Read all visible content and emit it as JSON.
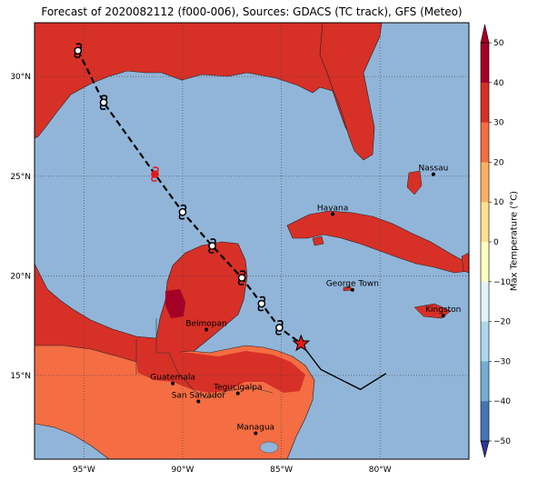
{
  "title": "Forecast of 2020082112 (f000-006), Sources: GDACS (TC track), GFS (Meteo)",
  "map": {
    "lat_ticks": [
      {
        "value": 30,
        "label": "30°N"
      },
      {
        "value": 25,
        "label": "25°N"
      },
      {
        "value": 20,
        "label": "20°N"
      },
      {
        "value": 15,
        "label": "15°N"
      }
    ],
    "lon_ticks": [
      {
        "value": -95,
        "label": "95°W"
      },
      {
        "value": -90,
        "label": "90°W"
      },
      {
        "value": -85,
        "label": "85°W"
      },
      {
        "value": -80,
        "label": "80°W"
      }
    ],
    "cities": [
      {
        "name": "Nassau",
        "lon": -77.3,
        "lat": 25.1
      },
      {
        "name": "Havana",
        "lon": -82.4,
        "lat": 23.1
      },
      {
        "name": "George Town",
        "lon": -81.4,
        "lat": 19.3
      },
      {
        "name": "Kingston",
        "lon": -76.8,
        "lat": 18.0
      },
      {
        "name": "Belmopan",
        "lon": -88.8,
        "lat": 17.3
      },
      {
        "name": "Guatemala",
        "lon": -90.5,
        "lat": 14.6
      },
      {
        "name": "Tegucigalpa",
        "lon": -87.2,
        "lat": 14.1
      },
      {
        "name": "San Salvador",
        "lon": -89.2,
        "lat": 13.7
      },
      {
        "name": "Managua",
        "lon": -86.3,
        "lat": 12.1
      }
    ],
    "track": [
      {
        "lon": -95.3,
        "lat": 31.3
      },
      {
        "lon": -94.0,
        "lat": 28.7
      },
      {
        "lon": -91.4,
        "lat": 25.1
      },
      {
        "lon": -90.0,
        "lat": 23.2
      },
      {
        "lon": -88.5,
        "lat": 21.5
      },
      {
        "lon": -87.0,
        "lat": 19.9
      },
      {
        "lon": -86.0,
        "lat": 18.6
      },
      {
        "lon": -85.1,
        "lat": 17.4
      },
      {
        "lon": -84.0,
        "lat": 16.6
      }
    ],
    "current_position": {
      "lon": -84.0,
      "lat": 16.6
    },
    "past_track": [
      {
        "lon": -84.0,
        "lat": 16.6
      },
      {
        "lon": -83.0,
        "lat": 15.3
      },
      {
        "lon": -81.0,
        "lat": 14.3
      },
      {
        "lon": -79.7,
        "lat": 15.1
      }
    ],
    "colors": {
      "ocean": "#91b5d9",
      "land_hot": "#d73027",
      "land_warm": "#f46d43",
      "land_veryhot": "#a50026",
      "track": "#000000",
      "storm_red": "#e31a1c"
    }
  },
  "colorbar": {
    "title": "Max Temperature (°C)",
    "ticks": [
      "50",
      "40",
      "30",
      "20",
      "10",
      "0",
      "−10",
      "−20",
      "−30",
      "−40",
      "−50"
    ],
    "colors": [
      "#a50026",
      "#d73027",
      "#f46d43",
      "#fdae61",
      "#fee090",
      "#ffffbf",
      "#e0f3f8",
      "#abd9e9",
      "#74add1",
      "#4575b4",
      "#313695"
    ]
  }
}
